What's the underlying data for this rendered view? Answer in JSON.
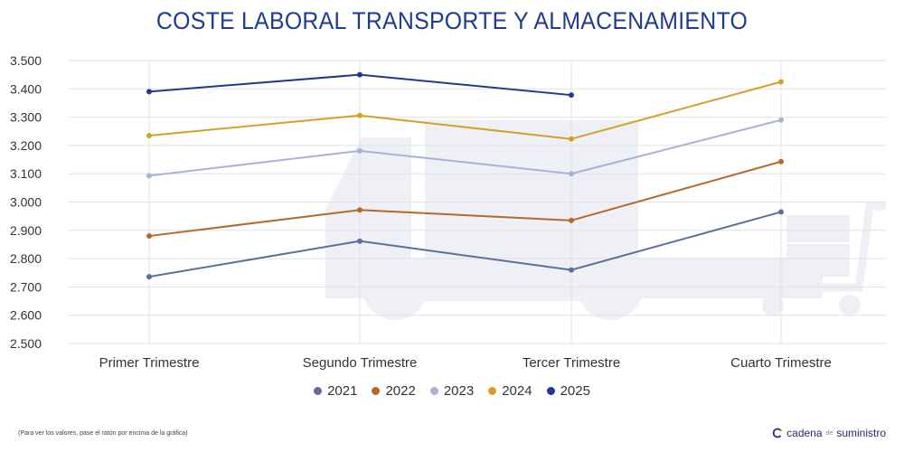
{
  "chart_data": {
    "type": "line",
    "title": "COSTE LABORAL TRANSPORTE Y ALMACENAMIENTO",
    "categories": [
      "Primer Trimestre",
      "Segundo Trimestre",
      "Tercer Trimestre",
      "Cuarto Trimestre"
    ],
    "y_ticks": [
      "3.500",
      "3.400",
      "3.300",
      "3.200",
      "3.100",
      "3.000",
      "2.900",
      "2.800",
      "2.700",
      "2.600",
      "2.500"
    ],
    "ylim": [
      2500,
      3500
    ],
    "grid": true,
    "legend_position": "bottom",
    "series": [
      {
        "name": "2021",
        "color": "#5c6f9f",
        "values": [
          2736,
          2862,
          2760,
          2965
        ]
      },
      {
        "name": "2022",
        "color": "#b5692a",
        "values": [
          2880,
          2972,
          2935,
          3143
        ]
      },
      {
        "name": "2023",
        "color": "#a7b3d4",
        "values": [
          3093,
          3181,
          3100,
          3290
        ]
      },
      {
        "name": "2024",
        "color": "#d4a127",
        "values": [
          3235,
          3306,
          3223,
          3425
        ]
      },
      {
        "name": "2025",
        "color": "#1f3a8f",
        "values": [
          3390,
          3450,
          3378,
          null
        ]
      }
    ]
  },
  "footnote": "(Para ver los valores, pase el ratón por encima de la gráfica)",
  "brand": {
    "part1": "cadena",
    "part2": "de",
    "part3": "suministro"
  },
  "colors": {
    "title": "#1f3a8f",
    "watermark": "#eef0f6",
    "grid": "#e2e2e2"
  },
  "icons": {
    "brand": "brand-logo-icon",
    "watermark": "truck-icon"
  }
}
